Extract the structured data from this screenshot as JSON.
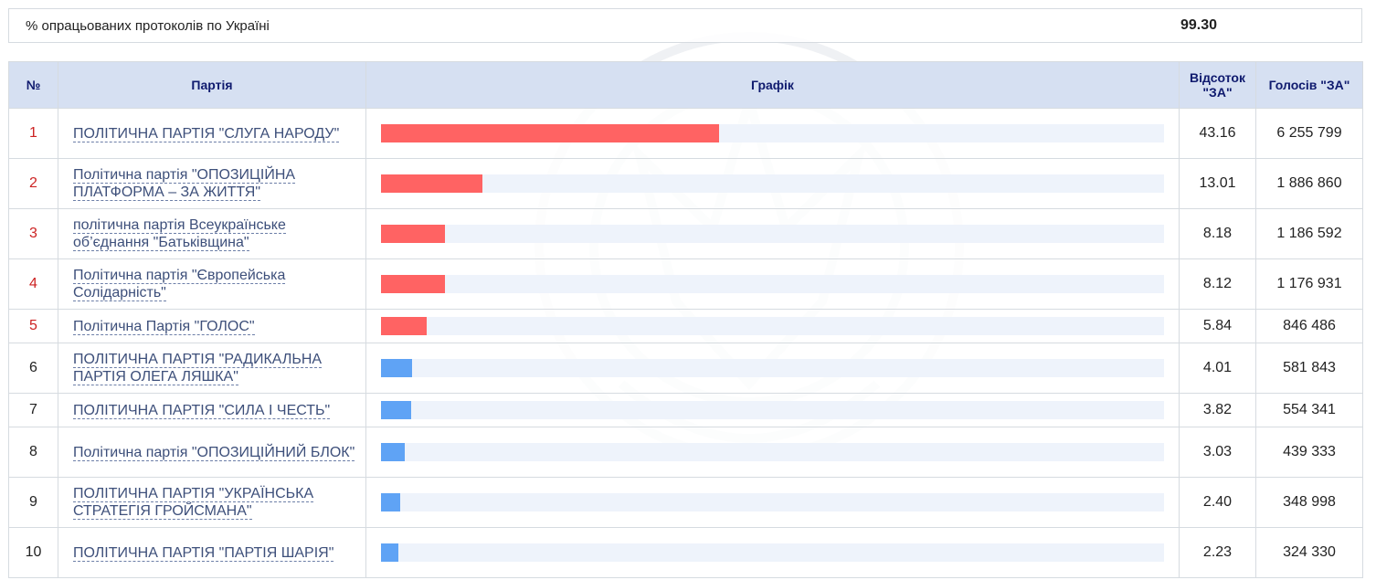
{
  "summary": {
    "label": "% опрацьованих протоколів по Україні",
    "value": "99.30"
  },
  "table": {
    "headers": {
      "num": "№",
      "party": "Партія",
      "chart": "Графік",
      "pct": "Відсоток \"ЗА\"",
      "votes": "Голосів \"ЗА\""
    },
    "rows": [
      {
        "num": "1",
        "party": "ПОЛІТИЧНА ПАРТІЯ \"СЛУГА НАРОДУ\"",
        "pct": "43.16",
        "votes": "6 255 799",
        "share": 43.16,
        "passed": true
      },
      {
        "num": "2",
        "party": "Політична партія \"ОПОЗИЦІЙНА ПЛАТФОРМА – ЗА ЖИТТЯ\"",
        "pct": "13.01",
        "votes": "1 886 860",
        "share": 13.01,
        "passed": true
      },
      {
        "num": "3",
        "party": "політична партія Всеукраїнське об’єднання \"Батьківщина\"",
        "pct": "8.18",
        "votes": "1 186 592",
        "share": 8.18,
        "passed": true
      },
      {
        "num": "4",
        "party": "Політична партія \"Європейська Солідарність\"",
        "pct": "8.12",
        "votes": "1 176 931",
        "share": 8.12,
        "passed": true
      },
      {
        "num": "5",
        "party": "Політична Партія \"ГОЛОС\"",
        "pct": "5.84",
        "votes": "846 486",
        "share": 5.84,
        "passed": true
      },
      {
        "num": "6",
        "party": "ПОЛІТИЧНА ПАРТІЯ \"РАДИКАЛЬНА ПАРТІЯ ОЛЕГА ЛЯШКА\"",
        "pct": "4.01",
        "votes": "581 843",
        "share": 4.01,
        "passed": false
      },
      {
        "num": "7",
        "party": "ПОЛІТИЧНА ПАРТІЯ \"СИЛА І ЧЕСТЬ\"",
        "pct": "3.82",
        "votes": "554 341",
        "share": 3.82,
        "passed": false
      },
      {
        "num": "8",
        "party": "Політична партія \"ОПОЗИЦІЙНИЙ БЛОК\"",
        "pct": "3.03",
        "votes": "439 333",
        "share": 3.03,
        "passed": false
      },
      {
        "num": "9",
        "party": "ПОЛІТИЧНА ПАРТІЯ \"УКРАЇНСЬКА СТРАТЕГІЯ ГРОЙСМАНА\"",
        "pct": "2.40",
        "votes": "348 998",
        "share": 2.4,
        "passed": false
      },
      {
        "num": "10",
        "party": "ПОЛІТИЧНА ПАРТІЯ \"ПАРТІЯ ШАРІЯ\"",
        "pct": "2.23",
        "votes": "324 330",
        "share": 2.23,
        "passed": false
      }
    ]
  },
  "colors": {
    "bar_passed": "#ff6363",
    "bar_other": "#5fa3f5",
    "header_bg": "#d6e0f2",
    "header_text": "#0f1a6e"
  },
  "chart_scale_max": 100
}
